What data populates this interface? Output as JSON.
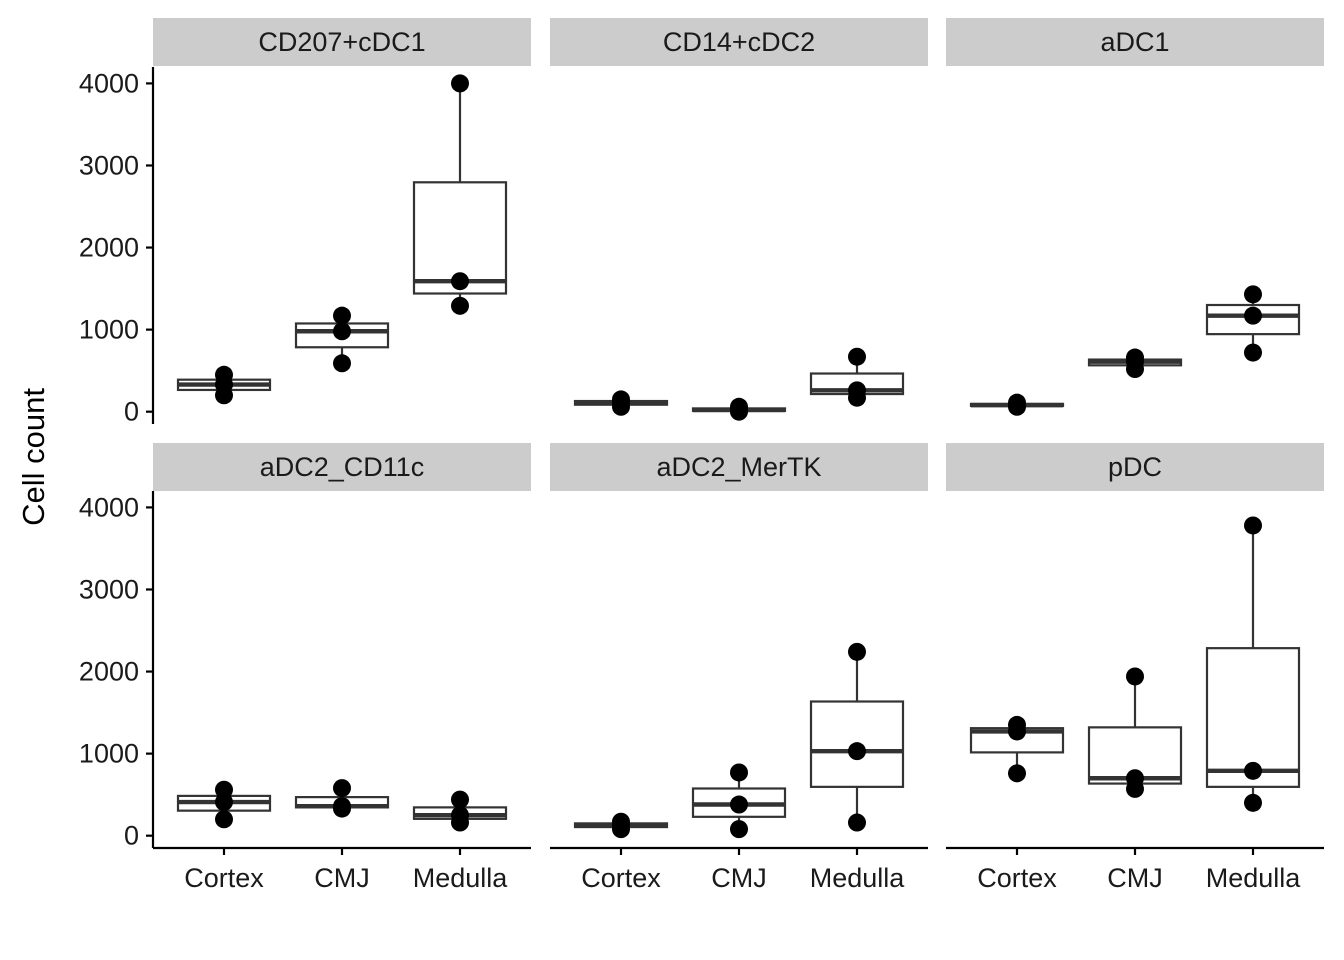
{
  "chart_data": {
    "type": "boxplot",
    "ylabel": "Cell count",
    "xlabel": "",
    "categories": [
      "Cortex",
      "CMJ",
      "Medulla"
    ],
    "ylim": [
      -150,
      4200
    ],
    "yticks": [
      0,
      1000,
      2000,
      3000,
      4000
    ],
    "facet_layout": "2 rows x 3 columns",
    "point_color": "#000000",
    "box_line_color": "#333333",
    "strip_color": "#cccccc",
    "panels": [
      {
        "title": "CD207+cDC1",
        "groups": [
          {
            "category": "Cortex",
            "points": [
              200,
              330,
              450
            ],
            "q1": 265,
            "median": 330,
            "q3": 390,
            "low": 200,
            "high": 450
          },
          {
            "category": "CMJ",
            "points": [
              590,
              980,
              1170
            ],
            "q1": 785,
            "median": 980,
            "q3": 1075,
            "low": 590,
            "high": 1170
          },
          {
            "category": "Medulla",
            "points": [
              1290,
              1590,
              4000
            ],
            "q1": 1440,
            "median": 1590,
            "q3": 2795,
            "low": 1290,
            "high": 4000
          }
        ]
      },
      {
        "title": "CD14+cDC2",
        "groups": [
          {
            "category": "Cortex",
            "points": [
              60,
              110,
              150
            ],
            "q1": 85,
            "median": 110,
            "q3": 130,
            "low": 60,
            "high": 150
          },
          {
            "category": "CMJ",
            "points": [
              0,
              20,
              60
            ],
            "q1": 10,
            "median": 20,
            "q3": 40,
            "low": 0,
            "high": 60
          },
          {
            "category": "Medulla",
            "points": [
              170,
              260,
              670
            ],
            "q1": 215,
            "median": 260,
            "q3": 465,
            "low": 170,
            "high": 670
          }
        ]
      },
      {
        "title": "aDC1",
        "groups": [
          {
            "category": "Cortex",
            "points": [
              60,
              80,
              110
            ],
            "q1": 70,
            "median": 80,
            "q3": 95,
            "low": 60,
            "high": 110
          },
          {
            "category": "CMJ",
            "points": [
              520,
              610,
              660
            ],
            "q1": 565,
            "median": 610,
            "q3": 635,
            "low": 520,
            "high": 660
          },
          {
            "category": "Medulla",
            "points": [
              720,
              1170,
              1430
            ],
            "q1": 945,
            "median": 1170,
            "q3": 1300,
            "low": 720,
            "high": 1430
          }
        ]
      },
      {
        "title": "aDC2_CD11c",
        "groups": [
          {
            "category": "Cortex",
            "points": [
              200,
              410,
              560
            ],
            "q1": 305,
            "median": 410,
            "q3": 485,
            "low": 200,
            "high": 560
          },
          {
            "category": "CMJ",
            "points": [
              330,
              360,
              580
            ],
            "q1": 345,
            "median": 360,
            "q3": 470,
            "low": 330,
            "high": 580
          },
          {
            "category": "Medulla",
            "points": [
              160,
              250,
              440
            ],
            "q1": 205,
            "median": 250,
            "q3": 345,
            "low": 160,
            "high": 440
          }
        ]
      },
      {
        "title": "aDC2_MerTK",
        "groups": [
          {
            "category": "Cortex",
            "points": [
              80,
              130,
              170
            ],
            "q1": 105,
            "median": 130,
            "q3": 150,
            "low": 80,
            "high": 170
          },
          {
            "category": "CMJ",
            "points": [
              80,
              380,
              770
            ],
            "q1": 230,
            "median": 380,
            "q3": 575,
            "low": 80,
            "high": 770
          },
          {
            "category": "Medulla",
            "points": [
              160,
              1030,
              2240
            ],
            "q1": 595,
            "median": 1030,
            "q3": 1635,
            "low": 160,
            "high": 2240
          }
        ]
      },
      {
        "title": "pDC",
        "groups": [
          {
            "category": "Cortex",
            "points": [
              760,
              1270,
              1350
            ],
            "q1": 1015,
            "median": 1270,
            "q3": 1310,
            "low": 760,
            "high": 1350
          },
          {
            "category": "CMJ",
            "points": [
              570,
              700,
              1940
            ],
            "q1": 635,
            "median": 700,
            "q3": 1320,
            "low": 570,
            "high": 1940
          },
          {
            "category": "Medulla",
            "points": [
              400,
              790,
              3780
            ],
            "q1": 595,
            "median": 790,
            "q3": 2285,
            "low": 400,
            "high": 3780
          }
        ]
      }
    ]
  }
}
